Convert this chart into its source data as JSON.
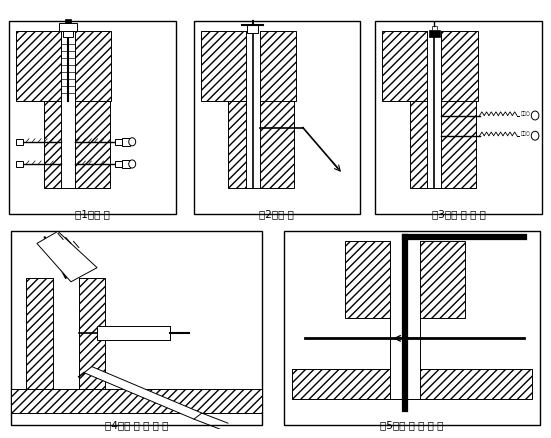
{
  "captions": [
    "（1）成 孔",
    "（2）清 孔",
    "（3）丙 酮 清 洗",
    "（4）注 入 胶 粘 剂",
    "（5）插 入 连 接 件"
  ],
  "fig_width": 5.51,
  "fig_height": 4.39,
  "dpi": 100
}
